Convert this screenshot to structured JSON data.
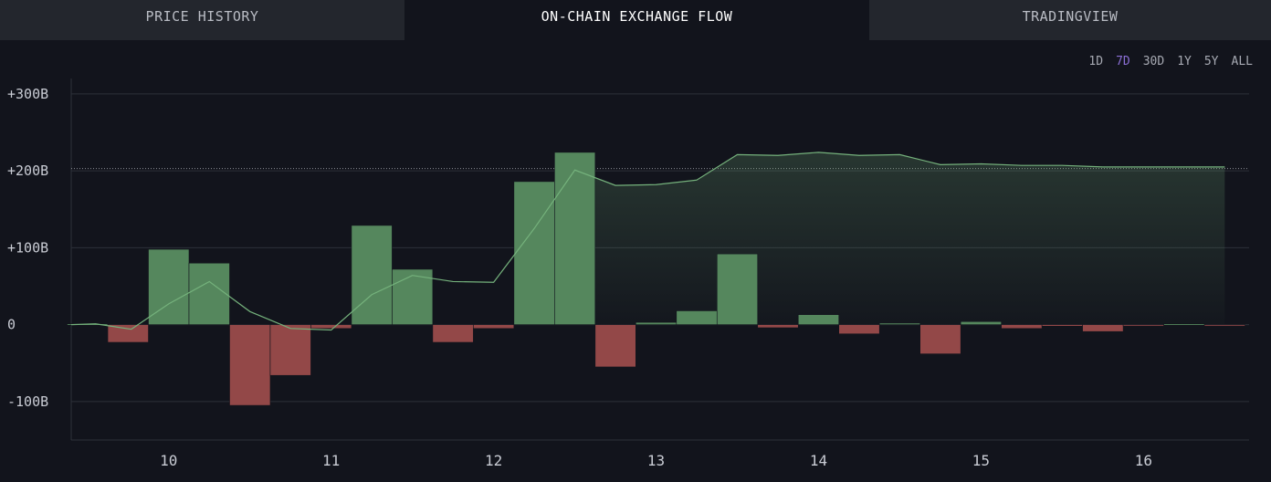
{
  "tabs": [
    {
      "label": "PRICE HISTORY",
      "active": false
    },
    {
      "label": "ON-CHAIN EXCHANGE FLOW",
      "active": true
    },
    {
      "label": "TRADINGVIEW",
      "active": false
    }
  ],
  "ranges": [
    "1D",
    "7D",
    "30D",
    "1Y",
    "5Y",
    "ALL"
  ],
  "active_range": "7D",
  "colors": {
    "inflow": "#55875d",
    "outflow": "#934848",
    "cumulative_line": "#75b27c",
    "background": "#12141c",
    "active_range": "#8b6fd6"
  },
  "chart_data": {
    "type": "bar",
    "ylim": [
      -150,
      320
    ],
    "xlim": [
      9.4,
      16.65
    ],
    "y_ticks": [
      {
        "value": 300,
        "label": "+300B"
      },
      {
        "value": 200,
        "label": "+200B"
      },
      {
        "value": 100,
        "label": "+100B"
      },
      {
        "value": 0,
        "label": "0"
      },
      {
        "value": -100,
        "label": "-100B"
      }
    ],
    "x_ticks": [
      {
        "value": 10,
        "label": "10"
      },
      {
        "value": 11,
        "label": "11"
      },
      {
        "value": 12,
        "label": "12"
      },
      {
        "value": 13,
        "label": "13"
      },
      {
        "value": 14,
        "label": "14"
      },
      {
        "value": 15,
        "label": "15"
      },
      {
        "value": 16,
        "label": "16"
      }
    ],
    "bar_width": 0.25,
    "bars": [
      {
        "x": 9.5,
        "value": 1
      },
      {
        "x": 9.75,
        "value": -23
      },
      {
        "x": 10.0,
        "value": 98
      },
      {
        "x": 10.25,
        "value": 80
      },
      {
        "x": 10.5,
        "value": -105
      },
      {
        "x": 10.75,
        "value": -66
      },
      {
        "x": 11.0,
        "value": -5
      },
      {
        "x": 11.25,
        "value": 129
      },
      {
        "x": 11.5,
        "value": 72
      },
      {
        "x": 11.75,
        "value": -23
      },
      {
        "x": 12.0,
        "value": -5
      },
      {
        "x": 12.25,
        "value": 186
      },
      {
        "x": 12.5,
        "value": 224
      },
      {
        "x": 12.75,
        "value": -55
      },
      {
        "x": 13.0,
        "value": 3
      },
      {
        "x": 13.25,
        "value": 18
      },
      {
        "x": 13.5,
        "value": 92
      },
      {
        "x": 13.75,
        "value": -4
      },
      {
        "x": 14.0,
        "value": 13
      },
      {
        "x": 14.25,
        "value": -12
      },
      {
        "x": 14.5,
        "value": 2
      },
      {
        "x": 14.75,
        "value": -38
      },
      {
        "x": 15.0,
        "value": 4
      },
      {
        "x": 15.25,
        "value": -5
      },
      {
        "x": 15.5,
        "value": -2
      },
      {
        "x": 15.75,
        "value": -9
      },
      {
        "x": 16.0,
        "value": -1
      },
      {
        "x": 16.25,
        "value": 1
      },
      {
        "x": 16.5,
        "value": -1
      }
    ],
    "cumulative": {
      "x": [
        9.4,
        9.55,
        9.77,
        10.0,
        10.25,
        10.5,
        10.75,
        11.0,
        11.25,
        11.5,
        11.75,
        12.0,
        12.25,
        12.5,
        12.75,
        13.0,
        13.25,
        13.5,
        13.75,
        14.0,
        14.25,
        14.5,
        14.75,
        15.0,
        15.25,
        15.5,
        15.75,
        16.0,
        16.25,
        16.5
      ],
      "y": [
        0,
        1,
        -6,
        27,
        56,
        17,
        -5,
        -7,
        39,
        64,
        56,
        55,
        125,
        201,
        181,
        182,
        188,
        221,
        220,
        224,
        220,
        221,
        208,
        209,
        207,
        207,
        205,
        205,
        205,
        205
      ]
    },
    "reference_line": 203
  }
}
